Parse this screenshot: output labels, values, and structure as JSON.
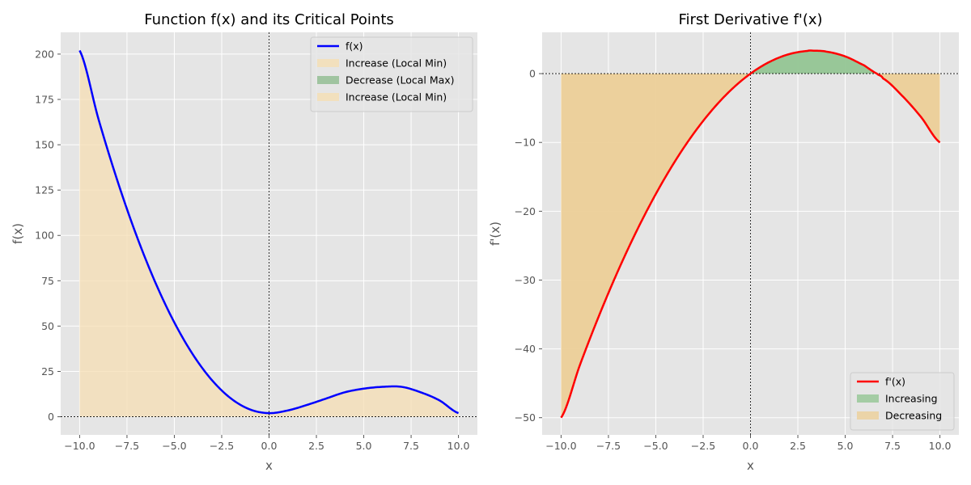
{
  "colors": {
    "background": "#e5e5e5",
    "grid": "#ffffff",
    "f_line": "#0000ff",
    "df_line": "#ff0000",
    "increase_fill": "#f5deb3",
    "decrease_fill": "#8fbc8f",
    "green_fill": "#94c594",
    "orange_fill": "#eccf98"
  },
  "chart_data": [
    {
      "type": "line",
      "title": "Function f(x) and its Critical Points",
      "xlabel": "x",
      "ylabel": "f(x)",
      "xlim": [
        -11,
        11
      ],
      "ylim": [
        -10,
        212
      ],
      "xticks": [
        -10,
        -7.5,
        -5,
        -2.5,
        0,
        2.5,
        5,
        7.5,
        10
      ],
      "xtick_labels": [
        "−10.0",
        "−7.5",
        "−5.0",
        "−2.5",
        "0.0",
        "2.5",
        "5.0",
        "7.5",
        "10.0"
      ],
      "yticks": [
        0,
        25,
        50,
        75,
        100,
        125,
        150,
        175,
        200
      ],
      "ytick_labels": [
        "0",
        "25",
        "50",
        "75",
        "100",
        "125",
        "150",
        "175",
        "200"
      ],
      "grid": true,
      "legend_position": "upper-right",
      "series": [
        {
          "name": "f(x)",
          "kind": "line",
          "x": [
            -10,
            -9,
            -8,
            -7,
            -6,
            -5,
            -4,
            -3,
            -2,
            -1,
            0,
            1,
            2,
            3,
            4,
            5,
            6,
            7,
            8,
            9,
            10
          ],
          "values": [
            202,
            164,
            130,
            100,
            74,
            52,
            34,
            20,
            10,
            4,
            2,
            3.5,
            6.5,
            10,
            13.5,
            15.5,
            16.5,
            16.5,
            13.5,
            9,
            2
          ]
        }
      ],
      "fills": [
        {
          "name": "Increase (Local Min)",
          "from": -10,
          "to": 0,
          "color_key": "increase_fill"
        },
        {
          "name": "Decrease (Local Max)",
          "from": 0,
          "to": 0,
          "color_key": "decrease_fill"
        },
        {
          "name": "Increase (Local Min)",
          "from": 0,
          "to": 10,
          "color_key": "increase_fill"
        }
      ]
    },
    {
      "type": "line",
      "title": "First Derivative f'(x)",
      "xlabel": "x",
      "ylabel": "f'(x)",
      "xlim": [
        -11,
        11
      ],
      "ylim": [
        -52.5,
        6
      ],
      "xticks": [
        -10,
        -7.5,
        -5,
        -2.5,
        0,
        2.5,
        5,
        7.5,
        10
      ],
      "xtick_labels": [
        "−10.0",
        "−7.5",
        "−5.0",
        "−2.5",
        "0.0",
        "2.5",
        "5.0",
        "7.5",
        "10.0"
      ],
      "yticks": [
        -50,
        -40,
        -30,
        -20,
        -10,
        0
      ],
      "ytick_labels": [
        "−50",
        "−40",
        "−30",
        "−20",
        "−10",
        "0"
      ],
      "grid": true,
      "legend_position": "lower-right",
      "series": [
        {
          "name": "f'(x)",
          "kind": "line",
          "x": [
            -10,
            -9,
            -8,
            -7,
            -6,
            -5,
            -4,
            -3,
            -2,
            -1,
            0,
            1,
            2,
            3,
            3.33,
            4,
            5,
            6,
            6.67,
            7,
            8,
            9,
            10
          ],
          "values": [
            -50,
            -42.3,
            -35.2,
            -28.7,
            -22.8,
            -17.5,
            -12.8,
            -8.7,
            -5.2,
            -2.3,
            0,
            1.7,
            2.8,
            3.3,
            3.33,
            3.2,
            2.5,
            1.2,
            0,
            -0.7,
            -3.2,
            -6.3,
            -10
          ]
        }
      ],
      "fills": [
        {
          "name": "Increasing",
          "where": "positive",
          "color_key": "green_fill"
        },
        {
          "name": "Decreasing",
          "where": "negative",
          "color_key": "orange_fill"
        }
      ]
    }
  ]
}
